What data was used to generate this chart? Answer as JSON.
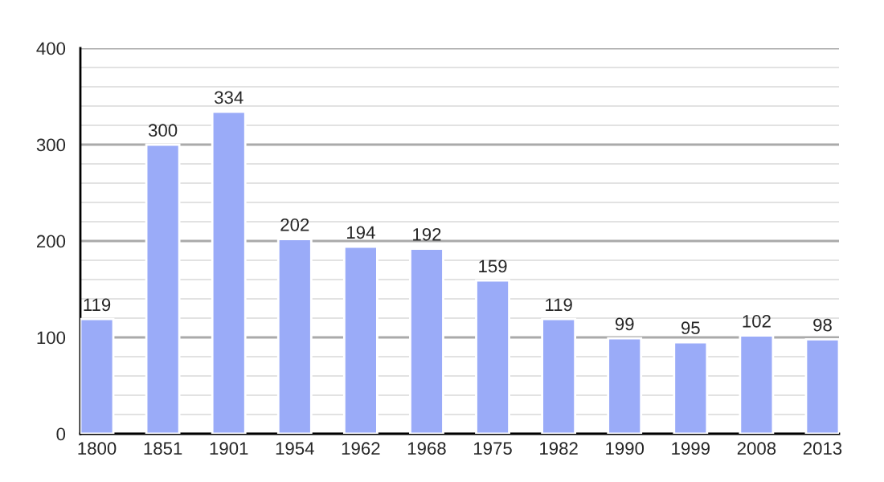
{
  "chart_data": {
    "type": "bar",
    "categories": [
      "1800",
      "1851",
      "1901",
      "1954",
      "1962",
      "1968",
      "1975",
      "1982",
      "1990",
      "1999",
      "2008",
      "2013"
    ],
    "values": [
      119,
      300,
      334,
      202,
      194,
      192,
      159,
      119,
      99,
      95,
      102,
      98
    ],
    "color": "#9aabf8",
    "ylim": [
      0,
      400
    ],
    "yticks": [
      0,
      {
        "value": 20,
        "label": null
      },
      {
        "value": 40,
        "label": null
      },
      {
        "value": 60,
        "label": null
      },
      {
        "value": 80,
        "label": null
      },
      100,
      {
        "value": 120,
        "label": null
      },
      {
        "value": 140,
        "label": null
      },
      {
        "value": 160,
        "label": null
      },
      {
        "value": 180,
        "label": null
      },
      200,
      {
        "value": 220,
        "label": null
      },
      {
        "value": 240,
        "label": null
      },
      {
        "value": 260,
        "label": null
      },
      {
        "value": 280,
        "label": null
      },
      300,
      {
        "value": 320,
        "label": null
      },
      {
        "value": 340,
        "label": null
      },
      {
        "value": 360,
        "label": null
      },
      {
        "value": 380,
        "label": null
      },
      400
    ],
    "grid": "y",
    "data_labels": true
  }
}
